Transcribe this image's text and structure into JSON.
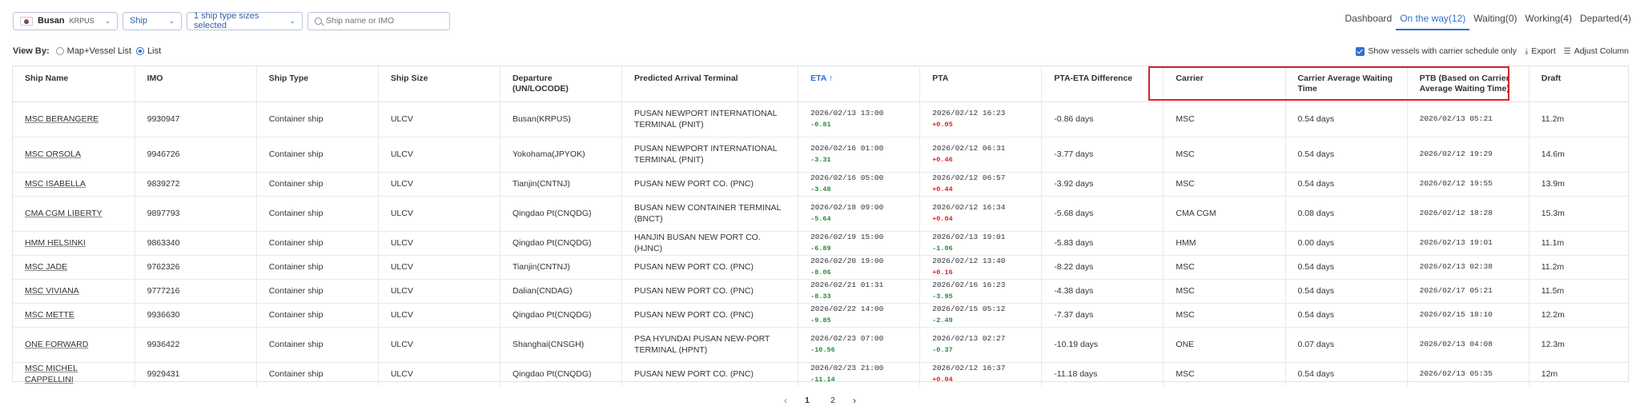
{
  "filters": {
    "port_name": "Busan",
    "port_code": "KRPUS",
    "ship_type": "Ship",
    "ship_sizes": "1 ship type sizes selected",
    "search_placeholder": "Ship name or IMO"
  },
  "tabs": [
    {
      "label": "Dashboard",
      "active": false
    },
    {
      "label": "On the way(12)",
      "active": true
    },
    {
      "label": "Waiting(0)",
      "active": false
    },
    {
      "label": "Working(4)",
      "active": false
    },
    {
      "label": "Departed(4)",
      "active": false
    }
  ],
  "view_by": {
    "label": "View By:",
    "option_map": "Map+Vessel List",
    "option_list": "List",
    "selected": "List"
  },
  "options": {
    "carrier_only": "Show vessels with carrier schedule only",
    "export": "Export",
    "adjust_column": "Adjust Column"
  },
  "columns": [
    "Ship Name",
    "IMO",
    "Ship Type",
    "Ship Size",
    "Departure (UN/LOCODE)",
    "Predicted Arrival Terminal",
    "ETA",
    "PTA",
    "PTA-ETA Difference",
    "Carrier",
    "Carrier Average Waiting Time",
    "PTB (Based on Carrier Average Waiting Time)",
    "Draft"
  ],
  "sort_indicator": "↑",
  "rows": [
    {
      "name": "MSC BERANGERE",
      "imo": "9930947",
      "type": "Container ship",
      "size": "ULCV",
      "departure": "Busan(KRPUS)",
      "terminal": "PUSAN NEWPORT INTERNATIONAL TERMINAL (PNIT)",
      "eta": "2026/02/13 13:00",
      "eta_delta": "-0.81",
      "pta": "2026/02/12 16:23",
      "pta_delta": "+0.05",
      "diff": "-0.86 days",
      "carrier": "MSC",
      "avg_wait": "0.54 days",
      "ptb": "2026/02/13 05:21",
      "draft": "11.2m"
    },
    {
      "name": "MSC ORSOLA",
      "imo": "9946726",
      "type": "Container ship",
      "size": "ULCV",
      "departure": "Yokohama(JPYOK)",
      "terminal": "PUSAN NEWPORT INTERNATIONAL TERMINAL (PNIT)",
      "eta": "2026/02/16 01:00",
      "eta_delta": "-3.31",
      "pta": "2026/02/12 06:31",
      "pta_delta": "+0.46",
      "diff": "-3.77 days",
      "carrier": "MSC",
      "avg_wait": "0.54 days",
      "ptb": "2026/02/12 19:29",
      "draft": "14.6m"
    },
    {
      "name": "MSC ISABELLA",
      "imo": "9839272",
      "type": "Container ship",
      "size": "ULCV",
      "departure": "Tianjin(CNTNJ)",
      "terminal": "PUSAN NEW PORT CO. (PNC)",
      "eta": "2026/02/16 05:00",
      "eta_delta": "-3.48",
      "pta": "2026/02/12 06:57",
      "pta_delta": "+0.44",
      "diff": "-3.92 days",
      "carrier": "MSC",
      "avg_wait": "0.54 days",
      "ptb": "2026/02/12 19:55",
      "draft": "13.9m"
    },
    {
      "name": "CMA CGM LIBERTY",
      "imo": "9897793",
      "type": "Container ship",
      "size": "ULCV",
      "departure": "Qingdao Pt(CNQDG)",
      "terminal": "BUSAN NEW CONTAINER TERMINAL (BNCT)",
      "eta": "2026/02/18 09:00",
      "eta_delta": "-5.64",
      "pta": "2026/02/12 16:34",
      "pta_delta": "+0.04",
      "diff": "-5.68 days",
      "carrier": "CMA CGM",
      "avg_wait": "0.08 days",
      "ptb": "2026/02/12 18:28",
      "draft": "15.3m"
    },
    {
      "name": "HMM HELSINKI",
      "imo": "9863340",
      "type": "Container ship",
      "size": "ULCV",
      "departure": "Qingdao Pt(CNQDG)",
      "terminal": "HANJIN BUSAN NEW PORT CO. (HJNC)",
      "eta": "2026/02/19 15:00",
      "eta_delta": "-6.89",
      "pta": "2026/02/13 19:01",
      "pta_delta": "-1.06",
      "diff": "-5.83 days",
      "carrier": "HMM",
      "avg_wait": "0.00 days",
      "ptb": "2026/02/13 19:01",
      "draft": "11.1m"
    },
    {
      "name": "MSC JADE",
      "imo": "9762326",
      "type": "Container ship",
      "size": "ULCV",
      "departure": "Tianjin(CNTNJ)",
      "terminal": "PUSAN NEW PORT CO. (PNC)",
      "eta": "2026/02/20 19:00",
      "eta_delta": "-8.06",
      "pta": "2026/02/12 13:40",
      "pta_delta": "+0.16",
      "diff": "-8.22 days",
      "carrier": "MSC",
      "avg_wait": "0.54 days",
      "ptb": "2026/02/13 02:38",
      "draft": "11.2m"
    },
    {
      "name": "MSC VIVIANA",
      "imo": "9777216",
      "type": "Container ship",
      "size": "ULCV",
      "departure": "Dalian(CNDAG)",
      "terminal": "PUSAN NEW PORT CO. (PNC)",
      "eta": "2026/02/21 01:31",
      "eta_delta": "-8.33",
      "pta": "2026/02/16 16:23",
      "pta_delta": "-3.95",
      "diff": "-4.38 days",
      "carrier": "MSC",
      "avg_wait": "0.54 days",
      "ptb": "2026/02/17 05:21",
      "draft": "11.5m"
    },
    {
      "name": "MSC METTE",
      "imo": "9936630",
      "type": "Container ship",
      "size": "ULCV",
      "departure": "Qingdao Pt(CNQDG)",
      "terminal": "PUSAN NEW PORT CO. (PNC)",
      "eta": "2026/02/22 14:00",
      "eta_delta": "-9.85",
      "pta": "2026/02/15 05:12",
      "pta_delta": "-2.49",
      "diff": "-7.37 days",
      "carrier": "MSC",
      "avg_wait": "0.54 days",
      "ptb": "2026/02/15 18:10",
      "draft": "12.2m"
    },
    {
      "name": "ONE FORWARD",
      "imo": "9936422",
      "type": "Container ship",
      "size": "ULCV",
      "departure": "Shanghai(CNSGH)",
      "terminal": "PSA HYUNDAI PUSAN NEW-PORT TERMINAL (HPNT)",
      "eta": "2026/02/23 07:00",
      "eta_delta": "-10.56",
      "pta": "2026/02/13 02:27",
      "pta_delta": "-0.37",
      "diff": "-10.19 days",
      "carrier": "ONE",
      "avg_wait": "0.07 days",
      "ptb": "2026/02/13 04:08",
      "draft": "12.3m"
    },
    {
      "name": "MSC MICHEL CAPPELLINI",
      "imo": "9929431",
      "type": "Container ship",
      "size": "ULCV",
      "departure": "Qingdao Pt(CNQDG)",
      "terminal": "PUSAN NEW PORT CO. (PNC)",
      "eta": "2026/02/23 21:00",
      "eta_delta": "-11.14",
      "pta": "2026/02/12 16:37",
      "pta_delta": "+0.04",
      "diff": "-11.18 days",
      "carrier": "MSC",
      "avg_wait": "0.54 days",
      "ptb": "2026/02/13 05:35",
      "draft": "12m"
    }
  ],
  "pagination": {
    "pages": [
      "1",
      "2"
    ],
    "current": "1"
  },
  "colors": {
    "accent": "#2f6fd0",
    "highlight": "#d9202a",
    "delta_negative": "#2a8a3a",
    "delta_positive": "#d22222"
  }
}
